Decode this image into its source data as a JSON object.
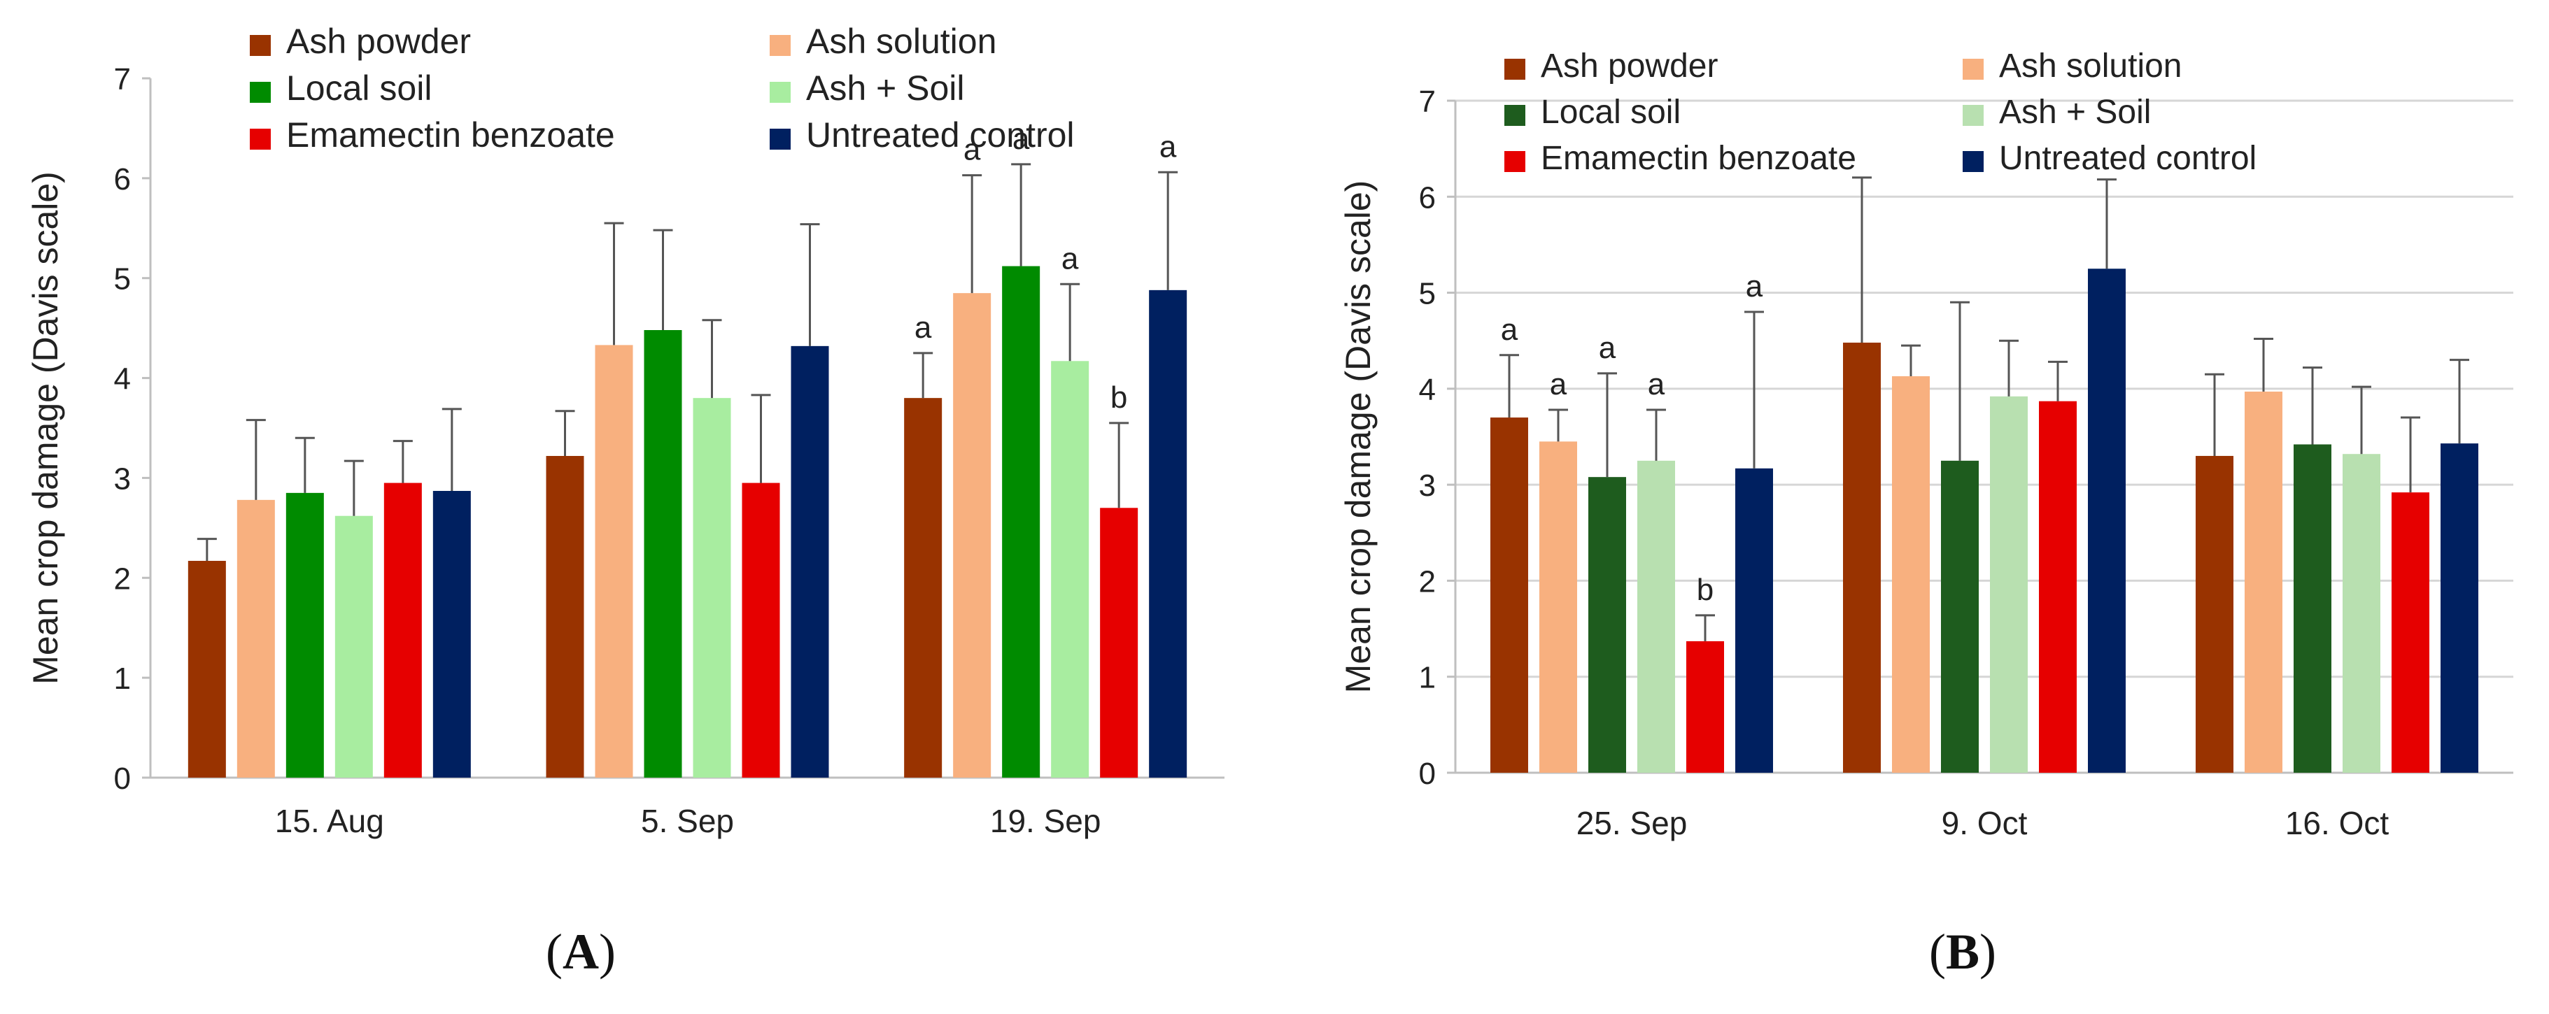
{
  "series_colors": {
    "panel_a": [
      "#993300",
      "#F8B07F",
      "#008B00",
      "#A8EDA0",
      "#E60000",
      "#002060"
    ],
    "panel_b": [
      "#993300",
      "#F8B07F",
      "#1E5C1E",
      "#B8E0B0",
      "#E60000",
      "#002060"
    ]
  },
  "panels": [
    {
      "label_open": "(",
      "label_letter": "A",
      "label_close": ")"
    },
    {
      "label_open": "(",
      "label_letter": "B",
      "label_close": ")"
    }
  ],
  "chart_data": [
    {
      "type": "bar",
      "panel": "A",
      "ylabel": "Mean crop damage (Davis scale)",
      "xlabel": "",
      "ylim": [
        0,
        7
      ],
      "yticks": [
        0,
        1,
        2,
        3,
        4,
        5,
        6,
        7
      ],
      "categories": [
        "15. Aug",
        "5. Sep",
        "19. Sep"
      ],
      "legend_position": "top",
      "series": [
        {
          "name": "Ash powder",
          "values": [
            2.17,
            3.22,
            3.8
          ],
          "errors": [
            0.22,
            0.45,
            0.45
          ],
          "letters": [
            "",
            "",
            "a"
          ]
        },
        {
          "name": "Ash solution",
          "values": [
            2.78,
            4.33,
            4.85
          ],
          "errors": [
            0.8,
            1.22,
            1.18
          ],
          "letters": [
            "",
            "",
            "a"
          ]
        },
        {
          "name": "Local soil",
          "values": [
            2.85,
            4.48,
            5.12
          ],
          "errors": [
            0.55,
            1.0,
            1.02
          ],
          "letters": [
            "",
            "",
            "a"
          ]
        },
        {
          "name": "Ash + Soil",
          "values": [
            2.62,
            3.8,
            4.17
          ],
          "errors": [
            0.55,
            0.78,
            0.77
          ],
          "letters": [
            "",
            "",
            "a"
          ]
        },
        {
          "name": "Emamectin benzoate",
          "values": [
            2.95,
            2.95,
            2.7
          ],
          "errors": [
            0.42,
            0.88,
            0.85
          ],
          "letters": [
            "",
            "",
            "b"
          ]
        },
        {
          "name": "Untreated control",
          "values": [
            2.87,
            4.32,
            4.88
          ],
          "errors": [
            0.82,
            1.22,
            1.18
          ],
          "letters": [
            "",
            "",
            "a"
          ]
        }
      ]
    },
    {
      "type": "bar",
      "panel": "B",
      "ylabel": "Mean crop damage (Davis scale)",
      "xlabel": "",
      "ylim": [
        0,
        7
      ],
      "yticks": [
        0,
        1,
        2,
        3,
        4,
        5,
        6,
        7
      ],
      "categories": [
        "25. Sep",
        "9. Oct",
        "16. Oct"
      ],
      "legend_position": "top",
      "series": [
        {
          "name": "Ash powder",
          "values": [
            3.7,
            4.48,
            3.3
          ],
          "errors": [
            0.65,
            1.72,
            0.85
          ],
          "letters": [
            "a",
            "",
            ""
          ]
        },
        {
          "name": "Ash solution",
          "values": [
            3.45,
            4.13,
            3.97
          ],
          "errors": [
            0.33,
            0.32,
            0.55
          ],
          "letters": [
            "a",
            "",
            ""
          ]
        },
        {
          "name": "Local soil",
          "values": [
            3.08,
            3.25,
            3.42
          ],
          "errors": [
            1.08,
            1.65,
            0.8
          ],
          "letters": [
            "a",
            "",
            ""
          ]
        },
        {
          "name": "Ash + Soil",
          "values": [
            3.25,
            3.92,
            3.32
          ],
          "errors": [
            0.53,
            0.58,
            0.7
          ],
          "letters": [
            "a",
            "",
            ""
          ]
        },
        {
          "name": "Emamectin benzoate",
          "values": [
            1.37,
            3.87,
            2.92
          ],
          "errors": [
            0.27,
            0.41,
            0.78
          ],
          "letters": [
            "b",
            "",
            ""
          ]
        },
        {
          "name": "Untreated control",
          "values": [
            3.17,
            5.25,
            3.43
          ],
          "errors": [
            1.63,
            0.93,
            0.87
          ],
          "letters": [
            "a",
            "",
            ""
          ]
        }
      ]
    }
  ]
}
